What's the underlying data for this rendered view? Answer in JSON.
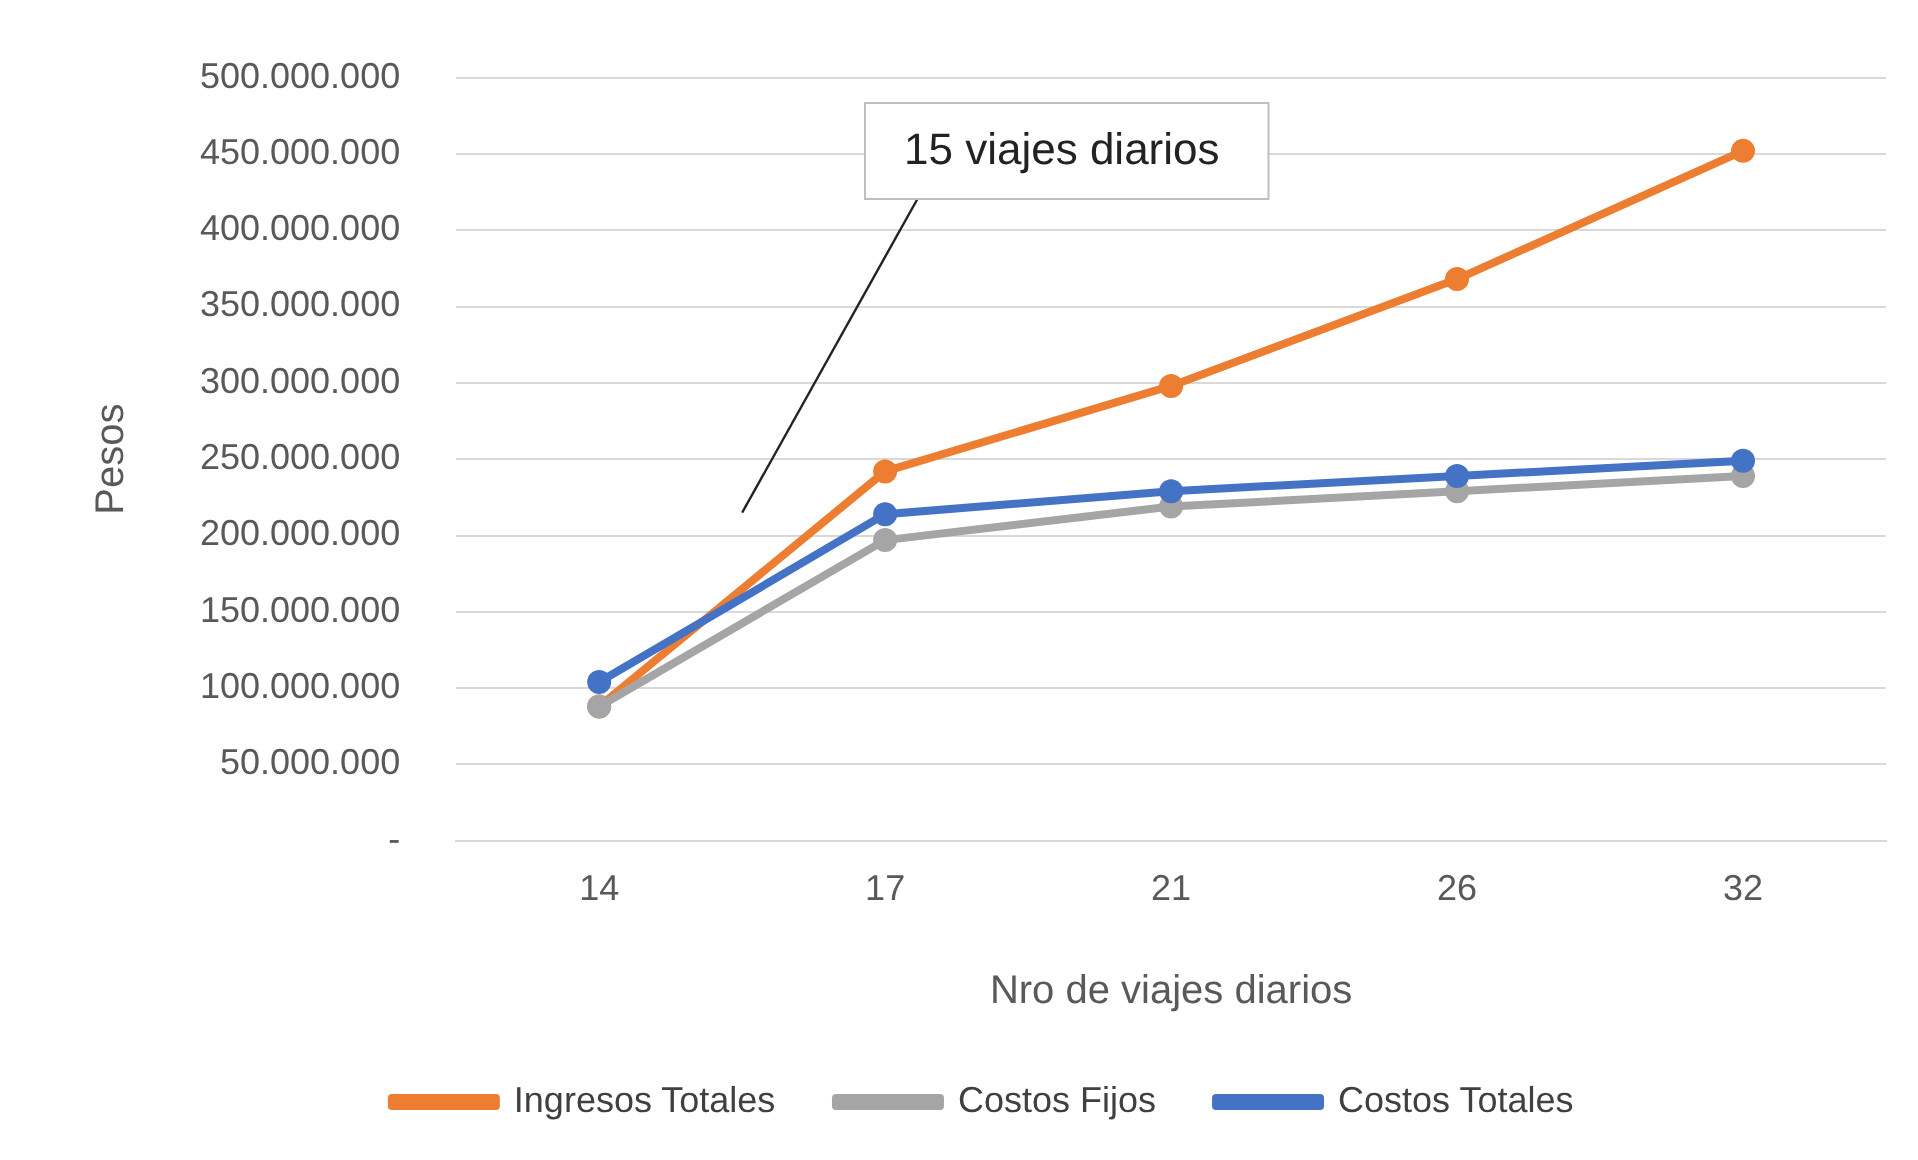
{
  "chart_data": {
    "type": "line",
    "xlabel": "Nro de viajes diarios",
    "ylabel": "Pesos",
    "categories": [
      "14",
      "17",
      "21",
      "26",
      "32"
    ],
    "series": [
      {
        "name": "Ingresos Totales",
        "color": "#ed7d31",
        "values": [
          88000000,
          242000000,
          298000000,
          368000000,
          452000000
        ]
      },
      {
        "name": "Costos Fijos",
        "color": "#a5a5a5",
        "values": [
          88000000,
          197000000,
          219000000,
          229000000,
          239000000
        ]
      },
      {
        "name": "Costos Totales",
        "color": "#4472c4",
        "values": [
          104000000,
          214000000,
          229000000,
          239000000,
          249000000
        ]
      }
    ],
    "ylim": [
      0,
      500000000
    ],
    "yticks": [
      {
        "value": 0,
        "label": "-"
      },
      {
        "value": 50000000,
        "label": "50.000.000"
      },
      {
        "value": 100000000,
        "label": "100.000.000"
      },
      {
        "value": 150000000,
        "label": "150.000.000"
      },
      {
        "value": 200000000,
        "label": "200.000.000"
      },
      {
        "value": 250000000,
        "label": "250.000.000"
      },
      {
        "value": 300000000,
        "label": "300.000.000"
      },
      {
        "value": 350000000,
        "label": "350.000.000"
      },
      {
        "value": 400000000,
        "label": "400.000.000"
      },
      {
        "value": 450000000,
        "label": "450.000.000"
      },
      {
        "value": 500000000,
        "label": "500.000.000"
      }
    ],
    "annotations": [
      "15 viajes diarios"
    ],
    "grid": "y",
    "legend": "bottom",
    "marker": "circle",
    "line_style": "solid"
  }
}
